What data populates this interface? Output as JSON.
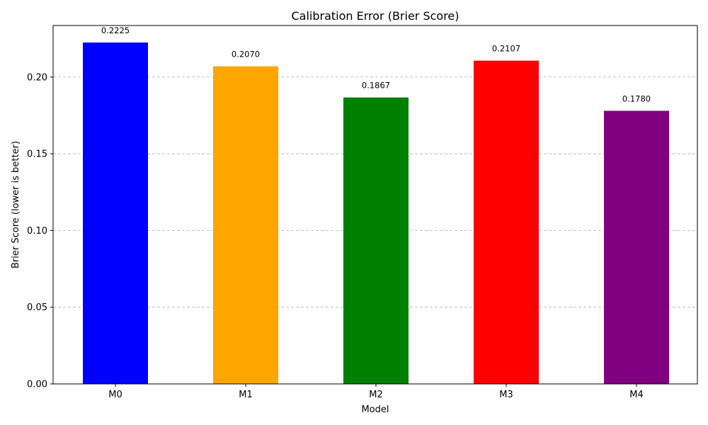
{
  "chart_data": {
    "type": "bar",
    "title": "Calibration Error (Brier Score)",
    "xlabel": "Model",
    "ylabel": "Brier Score (lower is better)",
    "categories": [
      "M0",
      "M1",
      "M2",
      "M3",
      "M4"
    ],
    "values": [
      0.2225,
      0.207,
      0.1867,
      0.2107,
      0.178
    ],
    "value_labels": [
      "0.2225",
      "0.2070",
      "0.1867",
      "0.2107",
      "0.1780"
    ],
    "colors": [
      "#0000ff",
      "#ffa500",
      "#008000",
      "#ff0000",
      "#800080"
    ],
    "ylim": [
      0,
      0.2336
    ],
    "yticks": [
      0.0,
      0.05,
      0.1,
      0.15,
      0.2
    ],
    "ytick_labels": [
      "0.00",
      "0.05",
      "0.10",
      "0.15",
      "0.20"
    ],
    "grid": "horizontal dashed",
    "legend": "none"
  }
}
